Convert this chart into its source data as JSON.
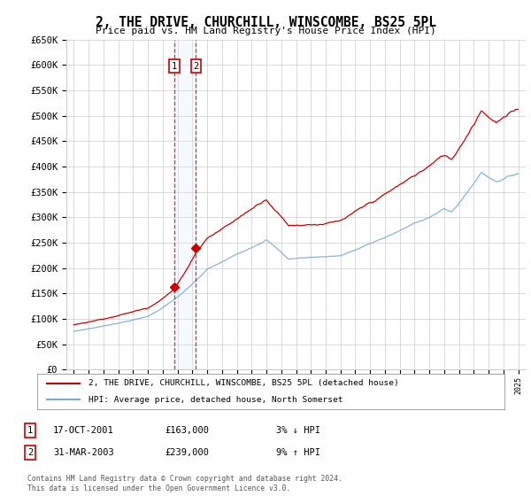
{
  "title": "2, THE DRIVE, CHURCHILL, WINSCOMBE, BS25 5PL",
  "subtitle": "Price paid vs. HM Land Registry's House Price Index (HPI)",
  "legend_line1": "2, THE DRIVE, CHURCHILL, WINSCOMBE, BS25 5PL (detached house)",
  "legend_line2": "HPI: Average price, detached house, North Somerset",
  "sale1_date": "17-OCT-2001",
  "sale1_price": "£163,000",
  "sale1_hpi": "3% ↓ HPI",
  "sale2_date": "31-MAR-2003",
  "sale2_price": "£239,000",
  "sale2_hpi": "9% ↑ HPI",
  "footer": "Contains HM Land Registry data © Crown copyright and database right 2024.\nThis data is licensed under the Open Government Licence v3.0.",
  "sale1_year": 2001.8,
  "sale2_year": 2003.25,
  "sale1_value": 163000,
  "sale2_value": 239000,
  "red_color": "#cc0000",
  "blue_color": "#7aadd4",
  "highlight_color": "#ddeeff",
  "grid_color": "#cccccc",
  "background_color": "#ffffff",
  "ylim_max": 650000,
  "xlim_min": 1994.5,
  "xlim_max": 2025.5,
  "yticks": [
    0,
    50000,
    100000,
    150000,
    200000,
    250000,
    300000,
    350000,
    400000,
    450000,
    500000,
    550000,
    600000,
    650000
  ]
}
